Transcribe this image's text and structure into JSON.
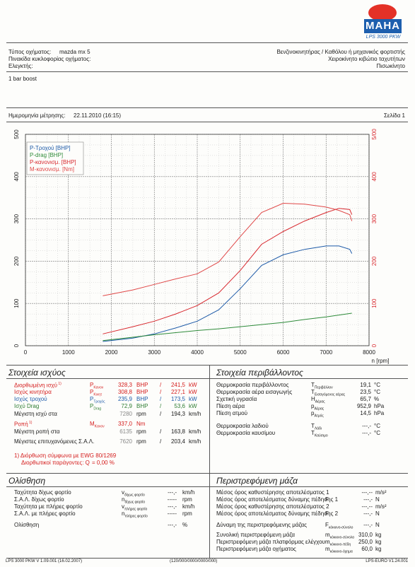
{
  "header": {
    "brand": "MAHA",
    "model": "LPS 3000 PKW",
    "vehicle_type_label": "Τύπος οχήματος:",
    "vehicle_type_value": "mazda mx 5",
    "plate_label": "Πινακίδα κυκλοφορίας οχήματος:",
    "inspector_label": "Ελεγκτής:",
    "engine_type": "Βενζινοκινητήρας / Καθόλου ή μηχανικός φορτιστής",
    "gearbox": "Χειροκίνητο κιβώτιο ταχυτήτων",
    "drive": "Πισωκίνητο",
    "note": "1 bar boost",
    "date_label": "Ημερομηνία μέτρησης:",
    "date_value": "22.11.2010 (16:15)",
    "page_label": "Σελίδα 1"
  },
  "chart_data": {
    "type": "line",
    "x_unit": "n [rpm]",
    "xlim": [
      0,
      8000
    ],
    "x_ticks": [
      0,
      1000,
      2000,
      3000,
      4000,
      5000,
      6000,
      7000,
      8000
    ],
    "ylim_left": [
      0,
      500
    ],
    "y_ticks_left": [
      0,
      100,
      200,
      300,
      400,
      500
    ],
    "ylim_right": [
      0,
      500
    ],
    "y_ticks_right": [
      "0",
      "100",
      "200",
      "300",
      "400",
      "5/00"
    ],
    "legend": [
      "P-Τροχού [BHP]",
      "P-drag [BHP]",
      "P-κανονισμ. [BHP]",
      "M-κανονισμ. [Nm]"
    ],
    "legend_position": "top-left",
    "grid": true,
    "series": [
      {
        "name": "P-Τροχού [BHP]",
        "color": "#1d5aa8",
        "x": [
          1800,
          2500,
          3000,
          3500,
          4000,
          4500,
          5000,
          5500,
          6000,
          6500,
          7000,
          7300,
          7550,
          7600
        ],
        "y": [
          10,
          18,
          28,
          42,
          58,
          85,
          135,
          190,
          215,
          228,
          236,
          236,
          228,
          218
        ]
      },
      {
        "name": "P-drag [BHP]",
        "color": "#2e8b3a",
        "x": [
          1800,
          2500,
          3000,
          3500,
          4000,
          4500,
          5000,
          5500,
          6000,
          6500,
          7000,
          7600
        ],
        "y": [
          12,
          20,
          26,
          31,
          36,
          40,
          45,
          50,
          55,
          62,
          68,
          77
        ]
      },
      {
        "name": "P-κανονισμ. [BHP]",
        "color": "#d8282e",
        "x": [
          1800,
          2500,
          3000,
          3500,
          4000,
          4500,
          5000,
          5500,
          6000,
          6500,
          7000,
          7300,
          7550,
          7600
        ],
        "y": [
          28,
          45,
          58,
          75,
          95,
          125,
          178,
          240,
          270,
          295,
          315,
          325,
          322,
          310
        ]
      },
      {
        "name": "M-κανονισμ. [Nm]",
        "color": "#e04848",
        "x": [
          1800,
          2500,
          3000,
          3500,
          4000,
          4500,
          5000,
          5500,
          6000,
          6500,
          7000,
          7300,
          7550,
          7600
        ],
        "y": [
          118,
          132,
          145,
          158,
          170,
          198,
          258,
          315,
          337,
          335,
          328,
          320,
          310,
          295
        ]
      }
    ]
  },
  "power": {
    "title": "Στοιχεία ισχύος",
    "rows": [
      {
        "label": "Διορθωμένη ισχύ",
        "sup": "1)",
        "sym": "P",
        "sub": "Κανον",
        "val1": "328,3",
        "u1": "BHP",
        "sep": "/",
        "val2": "241,5",
        "u2": "kW",
        "color": "#d41c1c"
      },
      {
        "label": "Ισχύς κινητήρα",
        "sup": "",
        "sym": "P",
        "sub": "Κινητ",
        "val1": "308,8",
        "u1": "BHP",
        "sep": "/",
        "val2": "227,1",
        "u2": "kW",
        "color": "#d41c1c"
      },
      {
        "label": "Ισχύς τροχού",
        "sup": "",
        "sym": "P",
        "sub": "Τροχός",
        "val1": "235,9",
        "u1": "BHP",
        "sep": "/",
        "val2": "173,5",
        "u2": "kW",
        "color": "#1d5aa8"
      },
      {
        "label": "Ισχύ Drag",
        "sup": "",
        "sym": "P",
        "sub": "Drag",
        "val1": "72,9",
        "u1": "BHP",
        "sep": "/",
        "val2": "53,6",
        "u2": "kW",
        "color": "#2e7d32"
      },
      {
        "label": "Μέγιστη ισχύ στα",
        "sup": "",
        "sym": "",
        "sub": "",
        "val1": "7280",
        "u1": "rpm",
        "sep": "/",
        "val2": "194,3",
        "u2": "km/h",
        "color": "#1a1a1a"
      },
      {
        "label": "Ροπή",
        "sup": "1)",
        "sym": "M",
        "sub": "Κανον",
        "val1": "337,0",
        "u1": "Nm",
        "sep": "",
        "val2": "",
        "u2": "",
        "color": "#d41c1c"
      },
      {
        "label": "Μέγιστη ροπή στα",
        "sup": "",
        "sym": "",
        "sub": "",
        "val1": "6135",
        "u1": "rpm",
        "sep": "/",
        "val2": "163,8",
        "u2": "km/h",
        "color": "#1a1a1a"
      },
      {
        "label": "Μέγιστες επιτυχανόμενες Σ.Α.Λ.",
        "sup": "",
        "sym": "",
        "sub": "",
        "val1": "7620",
        "u1": "rpm",
        "sep": "/",
        "val2": "203,4",
        "u2": "km/h",
        "color": "#1a1a1a"
      }
    ],
    "footnote1": "1) Διόρθωση σύμφωνα με EWG 80/1269",
    "footnote2": "Διορθωτικοί παράγοντες: Q",
    "footnote2_val": "=   0,00 %"
  },
  "environment": {
    "title": "Στοιχεία περιβάλλοντος",
    "rows": [
      {
        "label": "Θερμοκρασία περιβάλλοντος",
        "sym": "T",
        "sub": "Περιβάλλον",
        "val": "19,1",
        "unit": "°C"
      },
      {
        "label": "Θερμοκρασία αέρα εισαγωγής",
        "sym": "T",
        "sub": "Εισαγόμενος αέρας",
        "val": "23,5",
        "unit": "°C"
      },
      {
        "label": "Σχετική υγρασία",
        "sym": "H",
        "sub": "Αέρας",
        "val": "65,7",
        "unit": "%"
      },
      {
        "label": "Πίεση αέρα",
        "sym": "p",
        "sub": "Αέρας",
        "val": "952,9",
        "unit": "hPa"
      },
      {
        "label": "Πίεση ατμού",
        "sym": "p",
        "sub": "Ατμός",
        "val": "14,5",
        "unit": "hPa"
      },
      {
        "label": "Θερμοκρασία λαδιού",
        "sym": "T",
        "sub": "Λάδι",
        "val": "---,-",
        "unit": "°C"
      },
      {
        "label": "Θερμοκρασία καυσίμου",
        "sym": "T",
        "sub": "Καύσιμο",
        "val": "---,-",
        "unit": "°C"
      }
    ]
  },
  "olisthisi": {
    "title": "Ολίσθηση",
    "rows": [
      {
        "label": "Ταχύτητα δίχως φορτίο",
        "sym": "v",
        "sub": "δίχως φορτίο",
        "val": "---,-",
        "unit": "km/h"
      },
      {
        "label": "Σ.Α.Λ. δίχως φορτίο",
        "sym": "n",
        "sub": "δίχως φορτίο",
        "val": "-----",
        "unit": "rpm"
      },
      {
        "label": "Ταχύτητα με πλήρες φορτίο",
        "sym": "v",
        "sub": "πλήρες φορτίο",
        "val": "---,-",
        "unit": "km/h"
      },
      {
        "label": "Σ.Α.Λ. με πλήρες φορτίο",
        "sym": "n",
        "sub": "πλήρες φορτίο",
        "val": "-----",
        "unit": "rpm"
      },
      {
        "label": "Ολίσθηση",
        "sym": "",
        "sub": "",
        "val": "---,-",
        "unit": "%"
      }
    ]
  },
  "mass": {
    "title": "Περιστρεφόμενη μάζα",
    "rows": [
      {
        "label": "Μέσος όρος καθυστέρησης αποτελέσματος 1",
        "sym": "",
        "sub": "",
        "val": "---,--",
        "unit": "m/s²"
      },
      {
        "label": "Μέσος όρος αποτελέσματος δύναμης πέδησης 1",
        "sym": "F",
        "sub": "",
        "val": "---,-",
        "unit": "N"
      },
      {
        "label": "Μέσος όρος καθυστέρησης αποτελέσματος 2",
        "sym": "",
        "sub": "",
        "val": "---,--",
        "unit": "m/s²"
      },
      {
        "label": "Μέσος όρος αποτελέσματος δύναμης πέδησης 2",
        "sym": "F",
        "sub": "",
        "val": "---,-",
        "unit": "N"
      },
      {
        "label": "Δύναμη της περιστρεφόμενης μάζας",
        "sym": "F",
        "sub": "κόκκινο-σύνολο",
        "val": "---,-",
        "unit": "N"
      },
      {
        "label": "Συνολική περιστρεφόμενη μάζα",
        "sym": "m",
        "sub": "κόκκινο-σύνολο",
        "val": "310,0",
        "unit": "kg"
      },
      {
        "label": "Περιστρεφόμενη μάζα πλατφόρμας ελέγχου",
        "sym": "m",
        "sub": "κόκκινο-πέδη",
        "val": "250,0",
        "unit": "kg"
      },
      {
        "label": "Περιστρεφόμενη μάζα οχήματος",
        "sym": "m",
        "sub": "κόκκινο-όχημα",
        "val": "60,0",
        "unit": "kg"
      }
    ]
  },
  "footer": {
    "left": "LPS 3000 PKW V 1.09.001 (16.02.2007)",
    "center": "(120/000/0000/0000/000)",
    "right": "LPS-EURO V1.24.001"
  }
}
